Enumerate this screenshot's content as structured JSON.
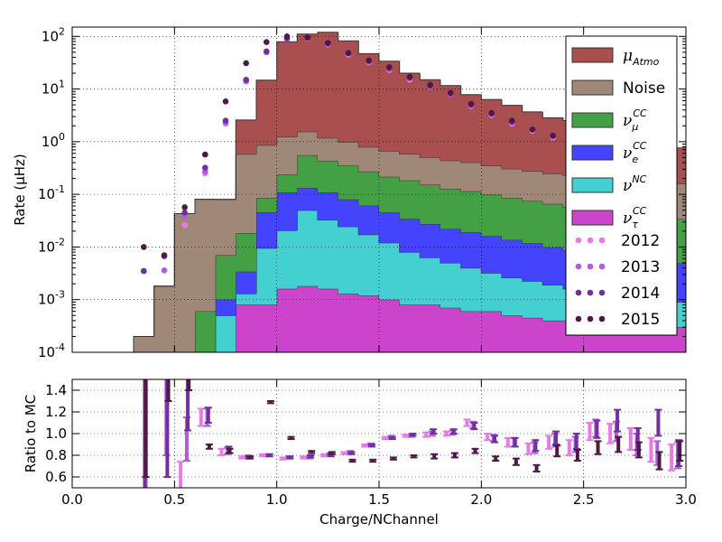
{
  "chart_data": [
    {
      "type": "area",
      "ylabel": "Rate (μHz)",
      "yscale": "log",
      "xlim": [
        0.0,
        3.0
      ],
      "ylim": [
        0.0001,
        150
      ],
      "grid": true,
      "legend_placement": "top-right",
      "ytick_labels": [
        {
          "v": 0.0001,
          "base": "10",
          "exp": "-4"
        },
        {
          "v": 0.001,
          "base": "10",
          "exp": "-3"
        },
        {
          "v": 0.01,
          "base": "10",
          "exp": "-2"
        },
        {
          "v": 0.1,
          "base": "10",
          "exp": "-1"
        },
        {
          "v": 1,
          "base": "10",
          "exp": "0"
        },
        {
          "v": 10,
          "base": "10",
          "exp": "1"
        },
        {
          "v": 100,
          "base": "10",
          "exp": "2"
        }
      ],
      "bin_edges": [
        0.0,
        0.1,
        0.2,
        0.3,
        0.4,
        0.5,
        0.6,
        0.7,
        0.8,
        0.9,
        1.0,
        1.1,
        1.2,
        1.3,
        1.4,
        1.5,
        1.6,
        1.7,
        1.8,
        1.9,
        2.0,
        2.1,
        2.2,
        2.3,
        2.4,
        2.5,
        2.6,
        2.7,
        2.8,
        2.9,
        3.0
      ],
      "stacked_series": [
        {
          "name": "nu_tau_CC",
          "legend": {
            "sym": "ν",
            "sub": "τ",
            "sup": "CC"
          },
          "color": "#cc44cc",
          "values": [
            0,
            0,
            0,
            0,
            0,
            0,
            0,
            0.0001,
            0.0008,
            0.0008,
            0.0016,
            0.0018,
            0.0016,
            0.0013,
            0.0012,
            0.001,
            0.0008,
            0.0008,
            0.0007,
            0.0006,
            0.0006,
            0.0005,
            0.00045,
            0.0004,
            0.0004,
            0.0004,
            0.00035,
            0.00035,
            0.0003,
            0.0003
          ]
        },
        {
          "name": "nu_NC",
          "legend": {
            "sym": "ν",
            "sub": "",
            "sup": "NC"
          },
          "color": "#44d0d0",
          "values": [
            0,
            0,
            0,
            0,
            0,
            0,
            0.0001,
            0.0004,
            0.0005,
            0.0087,
            0.019,
            0.048,
            0.031,
            0.023,
            0.016,
            0.011,
            0.0072,
            0.0055,
            0.0043,
            0.0034,
            0.0026,
            0.0021,
            0.0018,
            0.0015,
            0.0012,
            0.001,
            0.0009,
            0.0008,
            0.0007,
            0.0006
          ]
        },
        {
          "name": "nu_e_CC",
          "legend": {
            "sym": "ν",
            "sub": "e",
            "sup": "CC"
          },
          "color": "#4444ff",
          "values": [
            0,
            0,
            0,
            0,
            0,
            0,
            0,
            0.0005,
            0.0021,
            0.036,
            0.088,
            0.082,
            0.076,
            0.056,
            0.044,
            0.033,
            0.026,
            0.021,
            0.017,
            0.015,
            0.013,
            0.011,
            0.0095,
            0.008,
            0.007,
            0.006,
            0.0055,
            0.005,
            0.0045,
            0.004
          ]
        },
        {
          "name": "nu_mu_CC",
          "legend": {
            "sym": "ν",
            "sub": "μ",
            "sup": "CC"
          },
          "color": "#44a044",
          "values": [
            0,
            0,
            0,
            0,
            0,
            0,
            0.0005,
            0.006,
            0.015,
            0.04,
            0.13,
            0.42,
            0.32,
            0.27,
            0.21,
            0.17,
            0.15,
            0.125,
            0.105,
            0.095,
            0.082,
            0.072,
            0.063,
            0.056,
            0.049,
            0.044,
            0.04,
            0.035,
            0.032,
            0.029
          ]
        },
        {
          "name": "Noise",
          "legend": {
            "sym": "Noise",
            "sub": "",
            "sup": ""
          },
          "color": "#a08878",
          "values": [
            0,
            0,
            0,
            0.0002,
            0.0018,
            0.043,
            0.08,
            0.073,
            0.56,
            0.77,
            1.0,
            1.0,
            0.75,
            0.63,
            0.52,
            0.45,
            0.4,
            0.35,
            0.31,
            0.29,
            0.25,
            0.22,
            0.2,
            0.18,
            0.17,
            0.16,
            0.15,
            0.14,
            0.13,
            0.125
          ]
        },
        {
          "name": "mu_Atmo",
          "legend": {
            "sym": "μ",
            "sub": "Atmo",
            "sup": ""
          },
          "color": "#aa4f4f",
          "values": [
            0,
            0,
            0,
            0,
            0,
            0,
            0,
            0,
            2.0,
            13.9,
            78.0,
            109.0,
            118.0,
            81.0,
            46.0,
            33.0,
            19.4,
            14.5,
            11.2,
            7.4,
            6.0,
            4.6,
            3.4,
            2.6,
            2.3,
            1.8,
            1.4,
            1.25,
            1.05,
            0.6
          ]
        }
      ],
      "points": [
        {
          "name": "2012",
          "color": "#e87ae8",
          "x": [
            0.55,
            0.65,
            0.75,
            0.85,
            0.95,
            1.05,
            1.15,
            1.25,
            1.35,
            1.45,
            1.55,
            1.65,
            1.75,
            1.85,
            1.95,
            2.05,
            2.15,
            2.25,
            2.35,
            2.45
          ],
          "y": [
            0.026,
            0.25,
            2.2,
            14,
            50,
            90,
            92,
            70,
            45,
            32,
            23,
            15,
            11,
            8,
            4.7,
            3.2,
            2.2,
            1.6,
            1.2,
            0.9
          ]
        },
        {
          "name": "2013",
          "color": "#b25ce0",
          "x": [
            0.35,
            0.45,
            0.55,
            0.65,
            0.75,
            0.85,
            0.95,
            1.05,
            1.15,
            1.25,
            1.35,
            1.45,
            1.55,
            1.65,
            1.75,
            1.85,
            1.95,
            2.05,
            2.15,
            2.25,
            2.35,
            2.45
          ],
          "y": [
            0.0035,
            0.0036,
            0.038,
            0.27,
            2.3,
            14,
            50,
            90,
            92,
            72,
            47,
            33,
            24,
            16,
            11,
            8,
            4.8,
            3.3,
            2.3,
            1.7,
            1.25,
            0.95
          ]
        },
        {
          "name": "2014",
          "color": "#7030a0",
          "x": [
            0.35,
            0.45,
            0.55,
            0.65,
            0.75,
            0.85,
            0.95,
            1.05,
            1.15,
            1.25,
            1.35,
            1.45,
            1.55,
            1.65,
            1.75,
            1.85,
            1.95,
            2.05,
            2.15,
            2.25,
            2.35,
            2.45
          ],
          "y": [
            0.0035,
            0.0067,
            0.045,
            0.32,
            2.5,
            15,
            52,
            92,
            95,
            73,
            48,
            34,
            25,
            16.5,
            11.5,
            8.3,
            5,
            3.4,
            2.4,
            1.7,
            1.3,
            1.0
          ]
        },
        {
          "name": "2015",
          "color": "#501845",
          "x": [
            0.35,
            0.45,
            0.55,
            0.65,
            0.75,
            0.85,
            0.95,
            1.05,
            1.15,
            1.25,
            1.35,
            1.45,
            1.55,
            1.65,
            1.75,
            1.85,
            1.95,
            2.05,
            2.15,
            2.25,
            2.35,
            2.45
          ],
          "y": [
            0.01,
            0.007,
            0.057,
            0.57,
            5.8,
            31,
            78,
            100,
            95,
            75,
            48,
            35,
            26,
            17,
            12,
            8.5,
            5.2,
            3.5,
            2.5,
            1.7,
            1.3,
            1.0
          ]
        }
      ]
    },
    {
      "type": "scatter",
      "ylabel": "Ratio to MC",
      "xlabel": "Charge/NChannel",
      "xlim": [
        0.0,
        3.0
      ],
      "ylim": [
        0.5,
        1.5
      ],
      "grid": true,
      "xtick_labels": [
        "0.0",
        "0.5",
        "1.0",
        "1.5",
        "2.0",
        "2.5",
        "3.0"
      ],
      "ytick_labels": [
        "0.6",
        "0.8",
        "1.0",
        "1.2",
        "1.4"
      ],
      "series": [
        {
          "name": "2012",
          "color": "#e87ae8",
          "x": [
            0.53,
            0.63,
            0.73,
            0.83,
            0.93,
            1.03,
            1.13,
            1.23,
            1.33,
            1.43,
            1.53,
            1.63,
            1.73,
            1.83,
            1.93,
            2.03,
            2.13,
            2.23,
            2.33,
            2.43,
            2.53,
            2.63,
            2.73,
            2.83,
            2.93
          ],
          "y": [
            0.62,
            1.15,
            0.83,
            0.78,
            0.8,
            0.77,
            0.78,
            0.8,
            0.82,
            0.89,
            0.96,
            0.98,
            0.99,
            1.0,
            1.1,
            0.97,
            0.92,
            0.86,
            0.92,
            0.87,
            1.02,
            1.0,
            0.95,
            0.85,
            0.78
          ],
          "err": [
            0.12,
            0.08,
            0.03,
            0.01,
            0.01,
            0.01,
            0.01,
            0.01,
            0.01,
            0.01,
            0.01,
            0.01,
            0.02,
            0.02,
            0.03,
            0.03,
            0.04,
            0.05,
            0.06,
            0.07,
            0.08,
            0.09,
            0.1,
            0.11,
            0.12
          ]
        },
        {
          "name": "2013",
          "color": "#b25ce0",
          "x": [
            0.36,
            0.46,
            0.56,
            0.66,
            0.76,
            0.86,
            0.96,
            1.06,
            1.16,
            1.26,
            1.36,
            1.46,
            1.56,
            1.66,
            1.76,
            1.86,
            1.96,
            2.06,
            2.16,
            2.26,
            2.36,
            2.46,
            2.56,
            2.66,
            2.76,
            2.86,
            2.96
          ],
          "y": [
            1.0,
            1.2,
            0.95,
            1.15,
            0.84,
            0.79,
            0.8,
            0.78,
            0.78,
            0.81,
            0.83,
            0.9,
            0.97,
            0.98,
            1.0,
            1.01,
            1.08,
            0.96,
            0.92,
            0.87,
            0.94,
            0.9,
            1.05,
            1.02,
            0.9,
            0.82,
            0.8
          ],
          "err": [
            1.0,
            0.4,
            0.2,
            0.08,
            0.03,
            0.01,
            0.01,
            0.01,
            0.01,
            0.01,
            0.01,
            0.01,
            0.01,
            0.01,
            0.02,
            0.02,
            0.03,
            0.03,
            0.04,
            0.05,
            0.06,
            0.07,
            0.08,
            0.09,
            0.1,
            0.11,
            0.12
          ]
        },
        {
          "name": "2014",
          "color": "#7030a0",
          "x": [
            0.355,
            0.465,
            0.565,
            0.665,
            0.765,
            0.865,
            0.965,
            1.065,
            1.165,
            1.265,
            1.365,
            1.465,
            1.565,
            1.665,
            1.765,
            1.865,
            1.965,
            2.065,
            2.165,
            2.265,
            2.365,
            2.465,
            2.565,
            2.665,
            2.765,
            2.865,
            2.965
          ],
          "y": [
            0.9,
            1.1,
            1.28,
            1.17,
            0.85,
            0.78,
            0.8,
            0.78,
            0.79,
            0.8,
            0.82,
            0.89,
            0.96,
            0.99,
            1.02,
            1.02,
            1.07,
            0.95,
            0.92,
            0.89,
            0.96,
            0.93,
            1.04,
            1.12,
            0.95,
            1.1,
            0.82
          ],
          "err": [
            1.0,
            0.5,
            0.25,
            0.07,
            0.03,
            0.01,
            0.01,
            0.01,
            0.01,
            0.01,
            0.01,
            0.01,
            0.01,
            0.01,
            0.02,
            0.02,
            0.03,
            0.03,
            0.04,
            0.05,
            0.06,
            0.07,
            0.08,
            0.1,
            0.1,
            0.12,
            0.12
          ]
        },
        {
          "name": "2015",
          "color": "#501845",
          "x": [
            0.36,
            0.47,
            0.57,
            0.67,
            0.77,
            0.87,
            0.97,
            1.07,
            1.17,
            1.27,
            1.37,
            1.47,
            1.57,
            1.67,
            1.77,
            1.87,
            1.97,
            2.07,
            2.17,
            2.27,
            2.37,
            2.47,
            2.57,
            2.67,
            2.77,
            2.87,
            2.97
          ],
          "y": [
            1.6,
            1.6,
            1.6,
            0.88,
            0.84,
            0.78,
            1.29,
            0.96,
            0.83,
            0.82,
            0.75,
            0.75,
            0.77,
            0.79,
            0.79,
            0.8,
            0.84,
            0.77,
            0.74,
            0.68,
            0.84,
            0.8,
            0.87,
            0.9,
            0.85,
            0.75,
            0.84
          ],
          "err": [
            1.0,
            0.3,
            0.2,
            0.02,
            0.02,
            0.01,
            0.01,
            0.01,
            0.01,
            0.01,
            0.01,
            0.01,
            0.01,
            0.01,
            0.02,
            0.02,
            0.02,
            0.02,
            0.03,
            0.03,
            0.05,
            0.05,
            0.06,
            0.07,
            0.07,
            0.08,
            0.09
          ]
        }
      ]
    }
  ]
}
